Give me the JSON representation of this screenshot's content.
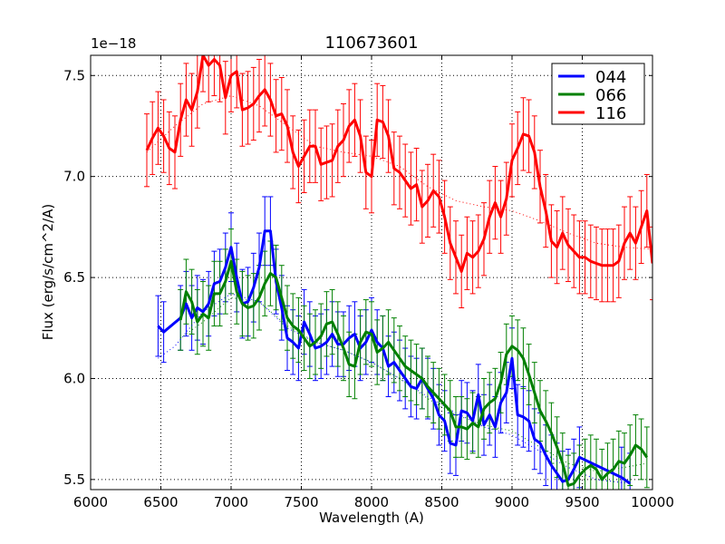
{
  "chart_data": {
    "type": "line",
    "title": "110673601",
    "xlabel": "Wavelength (A)",
    "ylabel": "Flux (erg/s/cm^2/A)",
    "y_offset_label": "1e−18",
    "xlim": [
      6000,
      10000
    ],
    "ylim": [
      5.45,
      7.6
    ],
    "x_ticks": [
      6000,
      6500,
      7000,
      7500,
      8000,
      8500,
      9000,
      9500,
      10000
    ],
    "y_ticks": [
      5.5,
      6.0,
      6.5,
      7.0,
      7.5
    ],
    "x_tick_labels": [
      "6000",
      "6500",
      "7000",
      "7500",
      "8000",
      "8500",
      "9000",
      "9500",
      "10000"
    ],
    "y_tick_labels": [
      "5.5",
      "6.0",
      "6.5",
      "7.0",
      "7.5"
    ],
    "grid": true,
    "legend_position": "top-right",
    "series": [
      {
        "name": "044",
        "color": "#0000ff",
        "x": [
          6480,
          6520,
          6640,
          6680,
          6720,
          6760,
          6800,
          6840,
          6880,
          6920,
          6960,
          7000,
          7040,
          7080,
          7120,
          7160,
          7200,
          7240,
          7280,
          7320,
          7360,
          7400,
          7440,
          7480,
          7520,
          7560,
          7600,
          7640,
          7680,
          7720,
          7760,
          7800,
          7840,
          7880,
          7920,
          7960,
          8000,
          8040,
          8080,
          8120,
          8160,
          8200,
          8240,
          8280,
          8320,
          8360,
          8400,
          8440,
          8480,
          8520,
          8560,
          8600,
          8640,
          8680,
          8720,
          8760,
          8800,
          8840,
          8880,
          8920,
          8960,
          9000,
          9040,
          9080,
          9120,
          9160,
          9200,
          9240,
          9280,
          9320,
          9360,
          9400,
          9440,
          9480,
          9780,
          9840
        ],
        "y": [
          6.26,
          6.23,
          6.3,
          6.37,
          6.3,
          6.35,
          6.33,
          6.37,
          6.47,
          6.48,
          6.55,
          6.65,
          6.5,
          6.37,
          6.38,
          6.45,
          6.55,
          6.73,
          6.73,
          6.48,
          6.35,
          6.2,
          6.18,
          6.15,
          6.28,
          6.22,
          6.15,
          6.16,
          6.18,
          6.22,
          6.17,
          6.17,
          6.2,
          6.22,
          6.15,
          6.18,
          6.24,
          6.18,
          6.15,
          6.06,
          6.08,
          6.04,
          6.0,
          5.96,
          5.95,
          6.0,
          5.95,
          5.9,
          5.82,
          5.79,
          5.68,
          5.67,
          5.84,
          5.83,
          5.79,
          5.92,
          5.77,
          5.82,
          5.76,
          5.88,
          5.93,
          6.1,
          5.82,
          5.81,
          5.79,
          5.7,
          5.68,
          5.62,
          5.57,
          5.53,
          5.49,
          5.5,
          5.55,
          5.61,
          5.51,
          5.48
        ],
        "error": [
          0.15,
          0.15,
          0.16,
          0.16,
          0.16,
          0.16,
          0.16,
          0.16,
          0.16,
          0.16,
          0.17,
          0.17,
          0.17,
          0.17,
          0.17,
          0.17,
          0.17,
          0.17,
          0.17,
          0.16,
          0.16,
          0.16,
          0.16,
          0.16,
          0.16,
          0.16,
          0.16,
          0.16,
          0.16,
          0.16,
          0.16,
          0.16,
          0.16,
          0.16,
          0.16,
          0.16,
          0.16,
          0.16,
          0.16,
          0.15,
          0.15,
          0.15,
          0.15,
          0.15,
          0.15,
          0.15,
          0.15,
          0.15,
          0.15,
          0.15,
          0.15,
          0.15,
          0.15,
          0.15,
          0.15,
          0.15,
          0.15,
          0.15,
          0.15,
          0.15,
          0.15,
          0.15,
          0.15,
          0.15,
          0.15,
          0.15,
          0.15,
          0.15,
          0.15,
          0.15,
          0.15,
          0.15,
          0.15,
          0.15,
          0.15,
          0.15
        ],
        "model_x": [
          6480,
          6600,
          6800,
          7000,
          7200,
          7400,
          7600,
          7800,
          8000,
          8200,
          8400,
          8600,
          8800,
          9000,
          9200,
          9400,
          9600,
          9840
        ],
        "model_y": [
          6.1,
          6.16,
          6.33,
          6.42,
          6.38,
          6.25,
          6.18,
          6.14,
          6.08,
          6.0,
          5.91,
          5.83,
          5.76,
          5.72,
          5.64,
          5.56,
          5.5,
          5.48
        ]
      },
      {
        "name": "066",
        "color": "#008000",
        "x": [
          6640,
          6680,
          6720,
          6760,
          6800,
          6840,
          6880,
          6920,
          6960,
          7000,
          7040,
          7080,
          7120,
          7160,
          7200,
          7240,
          7280,
          7320,
          7360,
          7400,
          7440,
          7480,
          7520,
          7560,
          7600,
          7640,
          7680,
          7720,
          7760,
          7800,
          7840,
          7880,
          7920,
          7960,
          8000,
          8040,
          8080,
          8120,
          8160,
          8200,
          8240,
          8280,
          8320,
          8360,
          8400,
          8440,
          8480,
          8520,
          8560,
          8600,
          8640,
          8680,
          8720,
          8760,
          8800,
          8840,
          8880,
          8920,
          8960,
          9000,
          9040,
          9080,
          9120,
          9160,
          9200,
          9240,
          9280,
          9320,
          9360,
          9400,
          9440,
          9480,
          9520,
          9560,
          9600,
          9640,
          9680,
          9720,
          9760,
          9800,
          9840,
          9880,
          9920,
          9960
        ],
        "y": [
          6.29,
          6.43,
          6.38,
          6.28,
          6.32,
          6.3,
          6.42,
          6.42,
          6.48,
          6.58,
          6.43,
          6.37,
          6.35,
          6.36,
          6.4,
          6.47,
          6.52,
          6.5,
          6.4,
          6.3,
          6.26,
          6.24,
          6.2,
          6.16,
          6.18,
          6.21,
          6.27,
          6.28,
          6.22,
          6.15,
          6.07,
          6.06,
          6.18,
          6.23,
          6.22,
          6.13,
          6.15,
          6.18,
          6.14,
          6.1,
          6.06,
          6.04,
          6.02,
          6.0,
          5.96,
          5.93,
          5.9,
          5.87,
          5.84,
          5.76,
          5.76,
          5.75,
          5.78,
          5.76,
          5.85,
          5.88,
          5.9,
          5.98,
          6.12,
          6.16,
          6.14,
          6.1,
          6.02,
          5.93,
          5.84,
          5.79,
          5.73,
          5.66,
          5.58,
          5.47,
          5.48,
          5.52,
          5.55,
          5.57,
          5.55,
          5.5,
          5.53,
          5.55,
          5.59,
          5.58,
          5.62,
          5.67,
          5.65,
          5.61
        ],
        "error": [
          0.15,
          0.16,
          0.16,
          0.16,
          0.16,
          0.16,
          0.16,
          0.16,
          0.16,
          0.16,
          0.16,
          0.16,
          0.16,
          0.16,
          0.16,
          0.16,
          0.16,
          0.16,
          0.16,
          0.16,
          0.16,
          0.16,
          0.16,
          0.16,
          0.16,
          0.16,
          0.16,
          0.16,
          0.16,
          0.16,
          0.16,
          0.16,
          0.16,
          0.16,
          0.16,
          0.16,
          0.16,
          0.16,
          0.16,
          0.16,
          0.15,
          0.15,
          0.15,
          0.15,
          0.15,
          0.15,
          0.15,
          0.15,
          0.15,
          0.15,
          0.15,
          0.15,
          0.15,
          0.15,
          0.15,
          0.15,
          0.15,
          0.15,
          0.15,
          0.15,
          0.15,
          0.15,
          0.15,
          0.15,
          0.15,
          0.15,
          0.15,
          0.15,
          0.15,
          0.15,
          0.15,
          0.15,
          0.15,
          0.15,
          0.15,
          0.15,
          0.15,
          0.15,
          0.15,
          0.15,
          0.15,
          0.15,
          0.15,
          0.15
        ],
        "model_x": [
          6640,
          6800,
          7000,
          7200,
          7400,
          7600,
          7800,
          8000,
          8200,
          8400,
          8600,
          8800,
          9000,
          9200,
          9400,
          9600,
          9800,
          9960
        ],
        "model_y": [
          6.2,
          6.28,
          6.4,
          6.38,
          6.26,
          6.18,
          6.14,
          6.08,
          6.0,
          5.9,
          5.82,
          5.77,
          5.74,
          5.66,
          5.58,
          5.54,
          5.56,
          5.58
        ]
      },
      {
        "name": "116",
        "color": "#ff0000",
        "x": [
          6400,
          6440,
          6480,
          6520,
          6560,
          6600,
          6640,
          6680,
          6720,
          6760,
          6800,
          6840,
          6880,
          6920,
          6960,
          7000,
          7040,
          7080,
          7120,
          7160,
          7200,
          7240,
          7280,
          7320,
          7360,
          7400,
          7440,
          7480,
          7520,
          7560,
          7600,
          7640,
          7680,
          7720,
          7760,
          7800,
          7840,
          7880,
          7920,
          7960,
          8000,
          8040,
          8080,
          8120,
          8160,
          8200,
          8240,
          8280,
          8320,
          8360,
          8400,
          8440,
          8480,
          8520,
          8560,
          8600,
          8640,
          8680,
          8720,
          8760,
          8800,
          8840,
          8880,
          8920,
          8960,
          9000,
          9040,
          9080,
          9120,
          9160,
          9200,
          9240,
          9280,
          9320,
          9360,
          9400,
          9440,
          9480,
          9520,
          9560,
          9600,
          9640,
          9680,
          9720,
          9760,
          9800,
          9840,
          9880,
          9920,
          9960,
          10000
        ],
        "y": [
          7.13,
          7.19,
          7.24,
          7.2,
          7.14,
          7.12,
          7.28,
          7.38,
          7.33,
          7.42,
          7.6,
          7.55,
          7.58,
          7.55,
          7.39,
          7.5,
          7.52,
          7.33,
          7.34,
          7.36,
          7.4,
          7.43,
          7.38,
          7.3,
          7.31,
          7.25,
          7.12,
          7.05,
          7.1,
          7.15,
          7.15,
          7.06,
          7.07,
          7.08,
          7.15,
          7.18,
          7.25,
          7.28,
          7.2,
          7.02,
          7.0,
          7.28,
          7.27,
          7.2,
          7.04,
          7.02,
          6.98,
          6.94,
          6.96,
          6.85,
          6.88,
          6.93,
          6.9,
          6.8,
          6.67,
          6.6,
          6.53,
          6.62,
          6.6,
          6.63,
          6.69,
          6.8,
          6.87,
          6.8,
          6.89,
          7.08,
          7.14,
          7.21,
          7.2,
          7.12,
          6.95,
          6.83,
          6.68,
          6.65,
          6.72,
          6.66,
          6.63,
          6.6,
          6.6,
          6.58,
          6.57,
          6.56,
          6.56,
          6.56,
          6.58,
          6.67,
          6.72,
          6.67,
          6.75,
          6.83,
          6.57
        ],
        "error": [
          0.18,
          0.18,
          0.18,
          0.18,
          0.18,
          0.18,
          0.18,
          0.18,
          0.18,
          0.18,
          0.18,
          0.18,
          0.18,
          0.18,
          0.18,
          0.18,
          0.18,
          0.18,
          0.18,
          0.18,
          0.18,
          0.18,
          0.18,
          0.18,
          0.18,
          0.18,
          0.18,
          0.18,
          0.18,
          0.18,
          0.18,
          0.18,
          0.18,
          0.18,
          0.18,
          0.18,
          0.18,
          0.18,
          0.18,
          0.18,
          0.18,
          0.18,
          0.18,
          0.18,
          0.18,
          0.18,
          0.18,
          0.18,
          0.18,
          0.18,
          0.18,
          0.18,
          0.18,
          0.18,
          0.18,
          0.18,
          0.18,
          0.18,
          0.18,
          0.18,
          0.18,
          0.18,
          0.18,
          0.18,
          0.18,
          0.18,
          0.18,
          0.18,
          0.18,
          0.18,
          0.18,
          0.18,
          0.18,
          0.18,
          0.18,
          0.18,
          0.18,
          0.18,
          0.18,
          0.18,
          0.18,
          0.18,
          0.18,
          0.18,
          0.18,
          0.18,
          0.18,
          0.18,
          0.18,
          0.18,
          0.18
        ],
        "model_x": [
          6400,
          6600,
          6800,
          7000,
          7200,
          7400,
          7600,
          7800,
          8000,
          8200,
          8400,
          8600,
          8800,
          9000,
          9200,
          9400,
          9600,
          9800,
          10000
        ],
        "model_y": [
          7.12,
          7.25,
          7.36,
          7.4,
          7.35,
          7.25,
          7.15,
          7.12,
          7.1,
          7.05,
          6.95,
          6.88,
          6.85,
          6.83,
          6.78,
          6.72,
          6.67,
          6.65,
          6.64
        ]
      }
    ]
  }
}
